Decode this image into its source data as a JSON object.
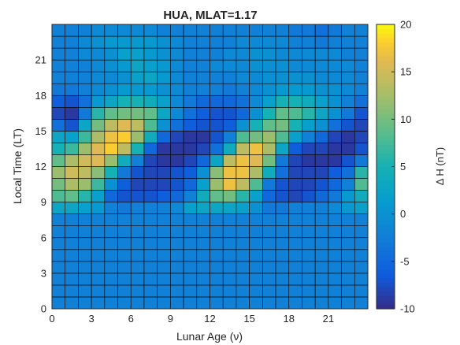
{
  "chart_data": {
    "type": "heatmap",
    "title": "HUA, MLAT=1.17",
    "xlabel": "Lunar Age (ν)",
    "ylabel": "Local Time (LT)",
    "colorbar_label": "Δ H (nT)",
    "colormap": "parula",
    "xlim": [
      0,
      24
    ],
    "ylim": [
      0,
      24
    ],
    "x_ticks": [
      0,
      3,
      6,
      9,
      12,
      15,
      18,
      21
    ],
    "y_ticks": [
      0,
      3,
      6,
      9,
      12,
      15,
      18,
      21
    ],
    "clim": [
      -10,
      20
    ],
    "colorbar_ticks": [
      -10,
      -5,
      0,
      5,
      10,
      15,
      20
    ],
    "grid": "cell-edges",
    "row_order": "local_time_0_to_23",
    "column_order": "lunar_age_0_to_23",
    "values": [
      [
        -2,
        -2,
        -2,
        -2,
        -2,
        -2,
        -2,
        -2,
        -2,
        -2,
        -2,
        -2,
        -2,
        -2,
        -2,
        -2,
        -2,
        -2,
        -2,
        -2,
        -2,
        -2,
        -2,
        -2
      ],
      [
        -2,
        -2,
        -2,
        -2,
        -2,
        -2,
        -2,
        -2,
        -2,
        -2,
        -2,
        -2,
        -2,
        -2,
        -2,
        -2,
        -2,
        -2,
        -2,
        -2,
        -2,
        -2,
        -2,
        -2
      ],
      [
        -2,
        -2,
        -2,
        -2,
        -2,
        -2,
        -2,
        -2,
        -2,
        -2,
        -2,
        -2,
        -2,
        -2,
        -2,
        -2,
        -2,
        -2,
        -2,
        -2,
        -2,
        -2,
        -2,
        -2
      ],
      [
        -2,
        -2,
        -2,
        -2,
        -2,
        -2,
        -2,
        -2,
        -2,
        -2,
        -2,
        -2,
        -2,
        -2,
        -2,
        -2,
        -2,
        -2,
        -2,
        -2,
        -2,
        -2,
        -2,
        -2
      ],
      [
        -2,
        -2,
        -2,
        -2,
        -2,
        -2,
        -2,
        -2,
        -2,
        -2,
        -2,
        -2,
        -2,
        -2,
        -2,
        -2,
        -2,
        -2,
        -2,
        -2,
        -2,
        -2,
        -2,
        -2
      ],
      [
        -2,
        -2,
        -2,
        -2,
        -2,
        -2,
        -2,
        -2,
        -2,
        -2,
        -2,
        -2,
        -2,
        -2,
        -2,
        -2,
        -2,
        -2,
        -2,
        -2,
        -2,
        -2,
        -2,
        -2
      ],
      [
        -2,
        -2,
        -2,
        -2,
        -2,
        -2,
        -2,
        -2,
        -2,
        -2,
        -2,
        -2,
        -2,
        -2,
        -2,
        -2,
        -2,
        -2,
        -2,
        -2,
        -2,
        -2,
        -2,
        -2
      ],
      [
        -2,
        -2,
        -2,
        -2,
        -2,
        -2,
        -2,
        -2,
        -2,
        -2,
        -2,
        -2,
        -2,
        -2,
        -2,
        -2,
        -2,
        -2,
        -2,
        -2,
        -2,
        -2,
        -2,
        -2
      ],
      [
        3,
        3,
        2,
        1,
        -2,
        -3,
        -2,
        -2,
        -2,
        -1,
        2,
        3,
        3,
        3,
        2,
        0,
        -3,
        -3,
        -2,
        -2,
        -2,
        -1,
        1,
        2
      ],
      [
        8,
        9,
        6,
        2,
        -5,
        -7,
        -7,
        -7,
        -6,
        -5,
        -2,
        4,
        9,
        10,
        6,
        2,
        -5,
        -7,
        -8,
        -7,
        -5,
        -3,
        1,
        4
      ],
      [
        10,
        13,
        12,
        7,
        0,
        -6,
        -8,
        -8,
        -8,
        -7,
        -5,
        2,
        12,
        17,
        14,
        8,
        -3,
        -7,
        -8,
        -8,
        -7,
        -5,
        -2,
        8
      ],
      [
        12,
        15,
        14,
        11,
        5,
        -3,
        -7,
        -8,
        -8,
        -7,
        -6,
        0,
        11,
        17,
        17,
        13,
        4,
        -4,
        -8,
        -8,
        -8,
        -6,
        -4,
        6
      ],
      [
        9,
        13,
        15,
        16,
        12,
        4,
        -2,
        -8,
        -9,
        -9,
        -8,
        -5,
        3,
        14,
        17,
        16,
        10,
        -3,
        -8,
        -9,
        -9,
        -9,
        -7,
        -3
      ],
      [
        5,
        7,
        12,
        16,
        18,
        14,
        5,
        -5,
        -9,
        -9,
        -9,
        -8,
        -4,
        4,
        14,
        17,
        13,
        3,
        -6,
        -8,
        -8,
        -9,
        -9,
        -7
      ],
      [
        3,
        2,
        7,
        13,
        17,
        18,
        12,
        4,
        -5,
        -8,
        -9,
        -9,
        -7,
        -2,
        8,
        10,
        12,
        8,
        2,
        -2,
        -5,
        -8,
        -9,
        -8
      ],
      [
        -4,
        -7,
        3,
        10,
        14,
        16,
        14,
        8,
        0,
        -4,
        -6,
        -7,
        -7,
        -6,
        0,
        5,
        9,
        10,
        5,
        2,
        0,
        -4,
        -7,
        -8
      ],
      [
        -8,
        -9,
        -3,
        6,
        9,
        10,
        10,
        9,
        3,
        -1,
        -4,
        -6,
        -7,
        -7,
        -5,
        0,
        5,
        9,
        8,
        6,
        3,
        0,
        -3,
        -7
      ],
      [
        -6,
        -7,
        -4,
        1,
        3,
        5,
        5,
        4,
        2,
        -1,
        -3,
        -5,
        -5,
        -5,
        -4,
        -1,
        2,
        5,
        5,
        4,
        2,
        0,
        -2,
        -4
      ],
      [
        -3,
        -3,
        -2,
        -1,
        0,
        1,
        1,
        1,
        0,
        -1,
        -2,
        -2,
        -2,
        -3,
        -2,
        -1,
        0,
        1,
        1,
        1,
        0,
        0,
        -1,
        -2
      ],
      [
        -2,
        -2,
        -2,
        -1,
        -1,
        0,
        2,
        3,
        1,
        -1,
        -2,
        -2,
        -2,
        -2,
        -1,
        -1,
        0,
        0,
        0,
        0,
        -1,
        -1,
        -1,
        -2
      ],
      [
        -2,
        -2,
        -2,
        -1,
        0,
        1,
        3,
        2,
        1,
        -1,
        -2,
        -2,
        -1,
        -1,
        -1,
        0,
        0,
        0,
        -1,
        -1,
        -1,
        -1,
        -1,
        -2
      ],
      [
        -2,
        -2,
        -1,
        -1,
        0,
        2,
        2,
        1,
        0,
        -1,
        -2,
        -2,
        -2,
        -1,
        -1,
        0,
        0,
        -1,
        -1,
        -1,
        -1,
        -1,
        -2,
        -2
      ],
      [
        -2,
        -2,
        -1,
        0,
        1,
        1,
        1,
        1,
        0,
        -1,
        -2,
        -2,
        -2,
        -2,
        -1,
        -1,
        -1,
        -1,
        -2,
        -2,
        -3,
        -2,
        -2,
        -2
      ],
      [
        -2,
        -2,
        -2,
        -1,
        -1,
        -1,
        -1,
        -1,
        -2,
        -2,
        -2,
        -2,
        -2,
        -2,
        -2,
        -2,
        -2,
        -2,
        -3,
        -3,
        -4,
        -3,
        -2,
        -2
      ]
    ]
  }
}
